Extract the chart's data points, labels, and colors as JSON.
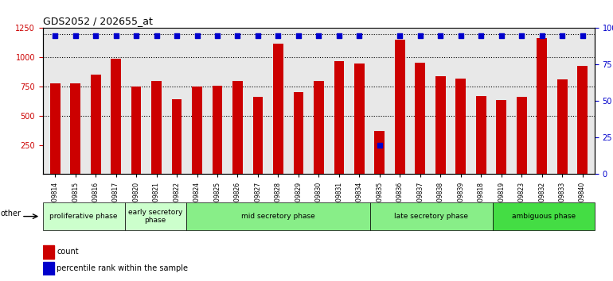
{
  "title": "GDS2052 / 202655_at",
  "samples": [
    "GSM109814",
    "GSM109815",
    "GSM109816",
    "GSM109817",
    "GSM109820",
    "GSM109821",
    "GSM109822",
    "GSM109824",
    "GSM109825",
    "GSM109826",
    "GSM109827",
    "GSM109828",
    "GSM109829",
    "GSM109830",
    "GSM109831",
    "GSM109834",
    "GSM109835",
    "GSM109836",
    "GSM109837",
    "GSM109838",
    "GSM109839",
    "GSM109818",
    "GSM109819",
    "GSM109823",
    "GSM109832",
    "GSM109833",
    "GSM109840"
  ],
  "counts": [
    775,
    775,
    855,
    985,
    750,
    795,
    640,
    750,
    760,
    795,
    665,
    1115,
    700,
    800,
    965,
    945,
    370,
    1150,
    955,
    840,
    820,
    670,
    635,
    665,
    1165,
    810,
    930
  ],
  "percentiles": [
    95,
    95,
    95,
    95,
    95,
    95,
    95,
    95,
    95,
    95,
    95,
    95,
    95,
    95,
    95,
    95,
    20,
    95,
    95,
    95,
    95,
    95,
    95,
    95,
    95,
    95,
    95
  ],
  "bar_color": "#cc0000",
  "dot_color": "#0000cc",
  "ylim_left": [
    0,
    1250
  ],
  "ylim_right": [
    0,
    100
  ],
  "yticks_left": [
    250,
    500,
    750,
    1000,
    1250
  ],
  "yticks_right": [
    0,
    25,
    50,
    75,
    100
  ],
  "dotted_lines": [
    500,
    750,
    1000
  ],
  "phases": [
    {
      "label": "proliferative phase",
      "start": 0,
      "end": 3,
      "color": "#ccffcc"
    },
    {
      "label": "early secretory\nphase",
      "start": 3,
      "end": 6,
      "color": "#ddffdd"
    },
    {
      "label": "mid secretory phase",
      "start": 6,
      "end": 15,
      "color": "#aaffaa"
    },
    {
      "label": "late secretory phase",
      "start": 15,
      "end": 21,
      "color": "#aaffaa"
    },
    {
      "label": "ambiguous phase",
      "start": 21,
      "end": 27,
      "color": "#44dd44"
    }
  ],
  "bg_color": "#e8e8e8",
  "other_label": "other"
}
